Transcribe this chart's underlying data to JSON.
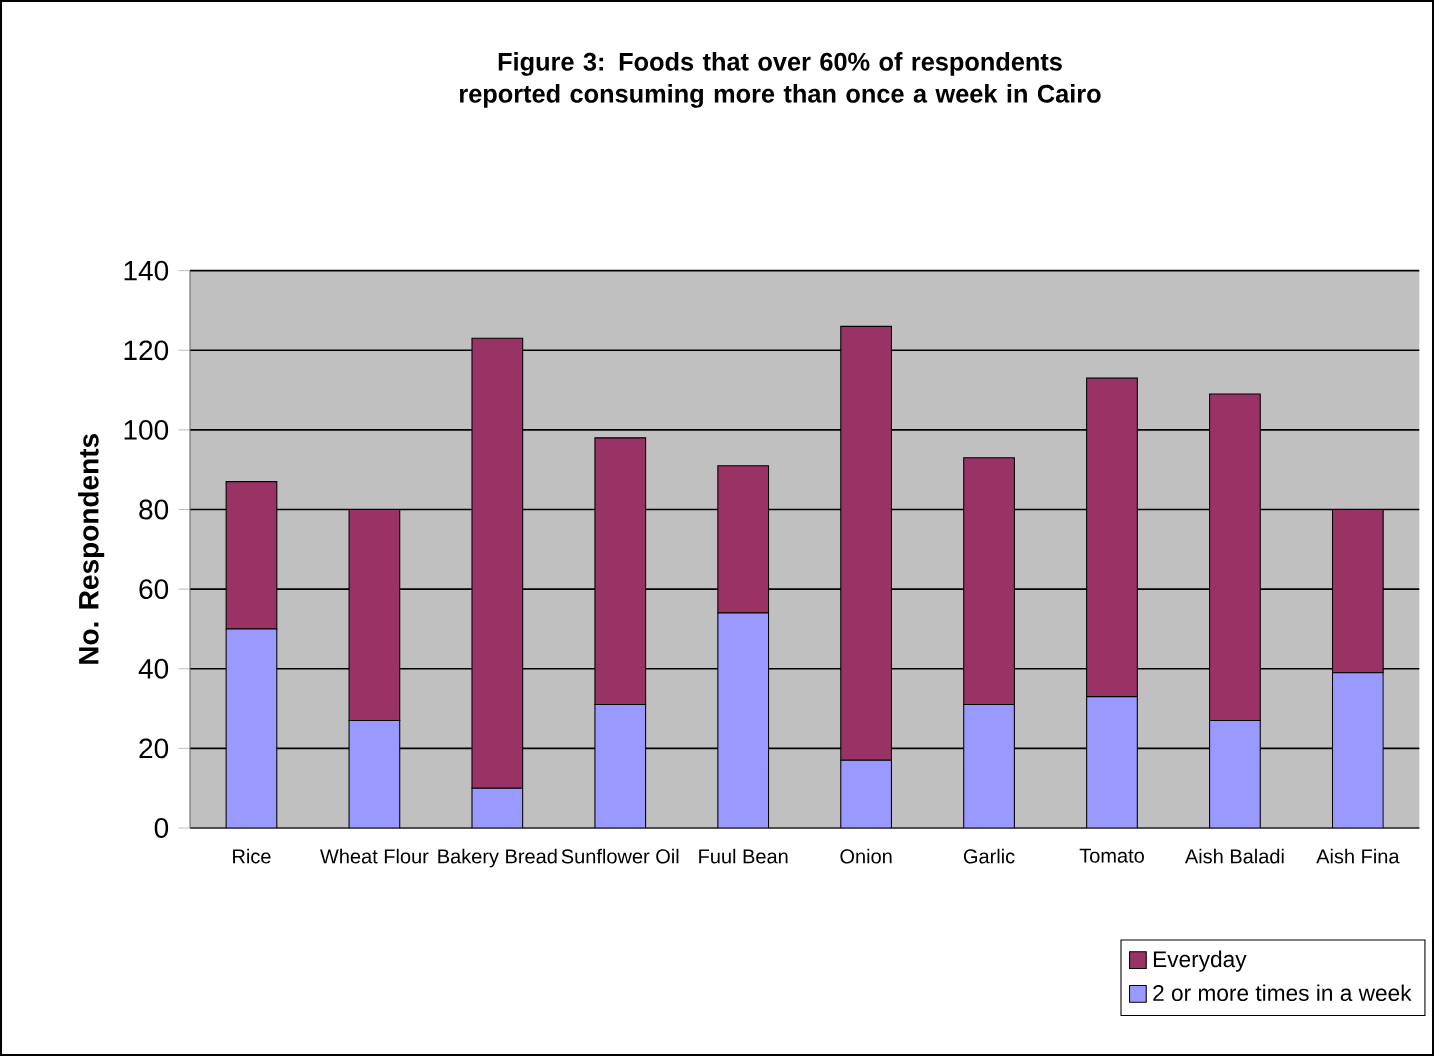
{
  "chart_data": {
    "type": "bar",
    "stacked": true,
    "title": "Figure 3: Foods that over 60% of respondents reported consuming more than once a week in Cairo",
    "ylabel": "No. Respondents",
    "categories": [
      "Rice",
      "Wheat Flour",
      "Bakery Bread",
      "Sunflower Oil",
      "Fuul Bean",
      "Onion",
      "Garlic",
      "Tomato",
      "Aish Baladi",
      "Aish Fina"
    ],
    "series": [
      {
        "name": "2 or more times in a week",
        "color": "#9999ff",
        "values": [
          50,
          27,
          10,
          31,
          54,
          17,
          31,
          33,
          27,
          39
        ]
      },
      {
        "name": "Everyday",
        "color": "#993366",
        "values": [
          37,
          53,
          113,
          67,
          37,
          109,
          62,
          80,
          82,
          41
        ]
      }
    ],
    "ylim": [
      0,
      140
    ],
    "yticks": [
      0,
      20,
      40,
      60,
      80,
      100,
      120,
      140
    ],
    "grid": "y",
    "legend": "bottom right"
  }
}
